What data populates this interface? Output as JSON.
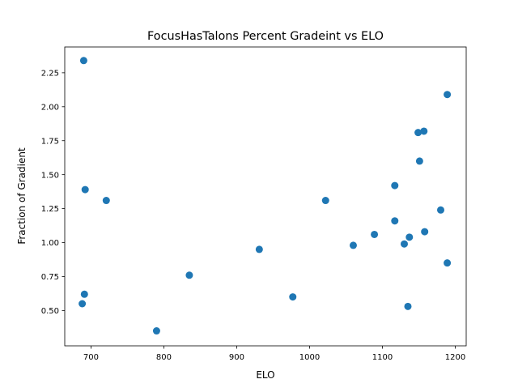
{
  "chart_data": {
    "type": "scatter",
    "title": "FocusHasTalons Percent Gradeint vs ELO",
    "xlabel": "ELO",
    "ylabel": "Fraction of Gradient",
    "xlim": [
      664,
      1215
    ],
    "ylim": [
      0.24,
      2.44
    ],
    "xticks": [
      700,
      800,
      900,
      1000,
      1100,
      1200
    ],
    "yticks": [
      0.5,
      0.75,
      1.0,
      1.25,
      1.5,
      1.75,
      2.0,
      2.25
    ],
    "xtick_labels": [
      "700",
      "800",
      "900",
      "1000",
      "1100",
      "1200"
    ],
    "ytick_labels": [
      "0.50",
      "0.75",
      "1.00",
      "1.25",
      "1.50",
      "1.75",
      "2.00",
      "2.25"
    ],
    "grid": false,
    "legend": "none",
    "marker_color": "#1f77b4",
    "series": [
      {
        "points": [
          [
            690,
            2.34
          ],
          [
            692,
            1.39
          ],
          [
            721,
            1.31
          ],
          [
            691,
            0.62
          ],
          [
            688,
            0.55
          ],
          [
            790,
            0.35
          ],
          [
            835,
            0.76
          ],
          [
            931,
            0.95
          ],
          [
            977,
            0.6
          ],
          [
            1022,
            1.31
          ],
          [
            1060,
            0.98
          ],
          [
            1089,
            1.06
          ],
          [
            1117,
            1.42
          ],
          [
            1117,
            1.16
          ],
          [
            1130,
            0.99
          ],
          [
            1137,
            1.04
          ],
          [
            1135,
            0.53
          ],
          [
            1149,
            1.81
          ],
          [
            1157,
            1.82
          ],
          [
            1151,
            1.6
          ],
          [
            1158,
            1.08
          ],
          [
            1180,
            1.24
          ],
          [
            1189,
            2.09
          ],
          [
            1189,
            0.85
          ]
        ]
      }
    ]
  }
}
